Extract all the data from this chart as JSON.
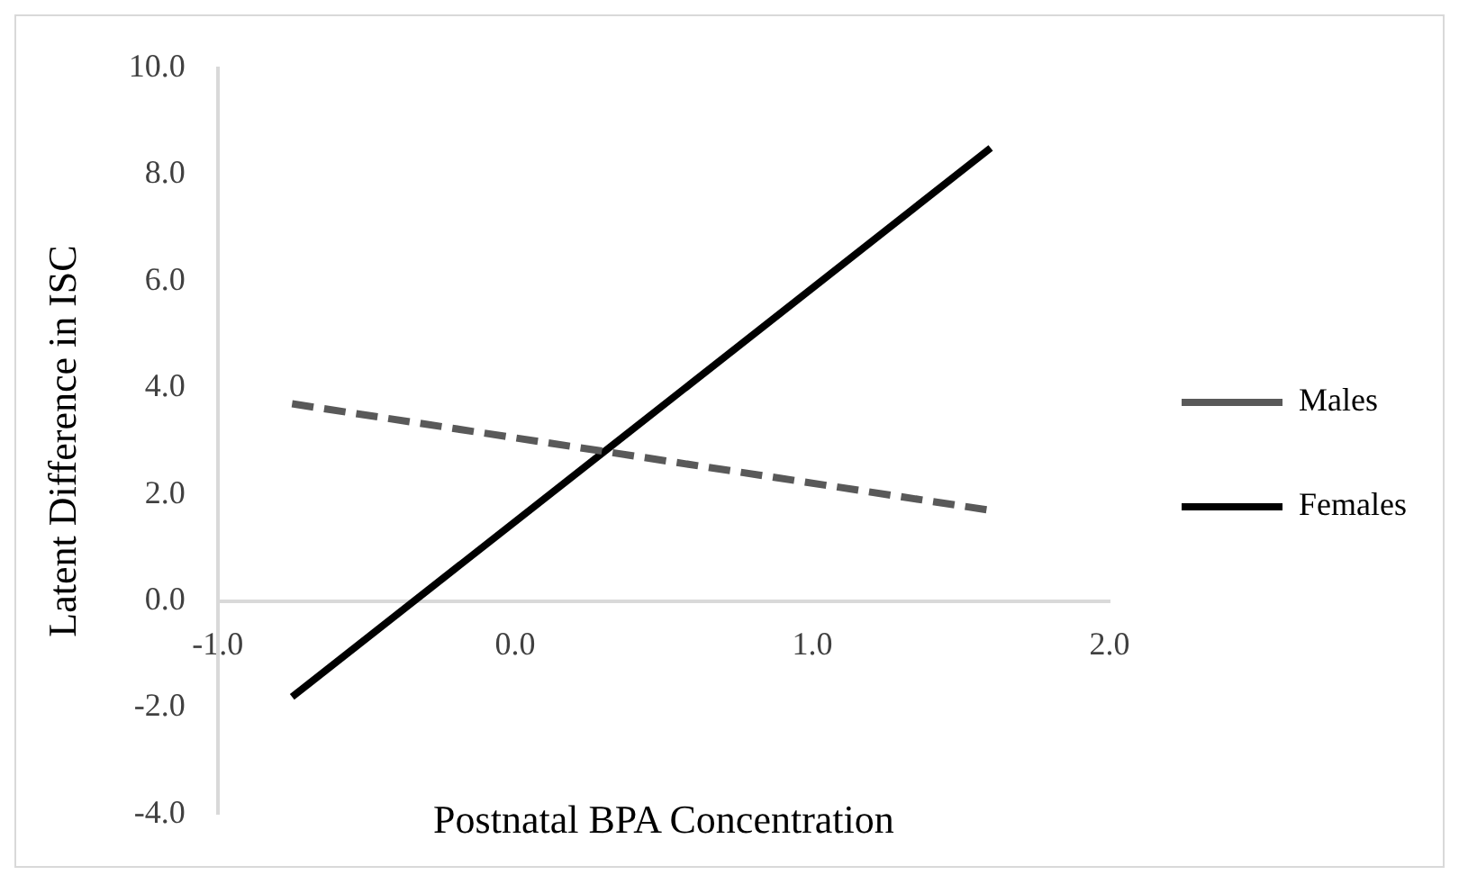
{
  "chart_data": {
    "type": "line",
    "xlabel": "Postnatal BPA Concentration",
    "ylabel": "Latent Difference in ISC",
    "xlim": [
      -1,
      2
    ],
    "xticks": [
      {
        "value": -1,
        "label": "-1.0"
      },
      {
        "value": 0,
        "label": "0.0"
      },
      {
        "value": 1,
        "label": "1.0"
      },
      {
        "value": 2,
        "label": "2.0"
      }
    ],
    "ylim": [
      -4,
      10
    ],
    "yticks": [
      {
        "value": -4,
        "label": "-4.0"
      },
      {
        "value": -2,
        "label": "-2.0"
      },
      {
        "value": 0,
        "label": "0.0"
      },
      {
        "value": 2,
        "label": "2.0"
      },
      {
        "value": 4,
        "label": "4.0"
      },
      {
        "value": 6,
        "label": "6.0"
      },
      {
        "value": 8,
        "label": "8.0"
      },
      {
        "value": 10,
        "label": "10.0"
      }
    ],
    "grid": false,
    "legend": "right",
    "marker": "none",
    "x": [
      -0.75,
      1.6
    ],
    "series": [
      {
        "name": "Males",
        "color": "#595959",
        "line_style": "dashed",
        "values": [
          3.7,
          1.7
        ]
      },
      {
        "name": "Females",
        "color": "#000000",
        "line_style": "solid",
        "values": [
          -1.8,
          8.5
        ]
      }
    ]
  }
}
